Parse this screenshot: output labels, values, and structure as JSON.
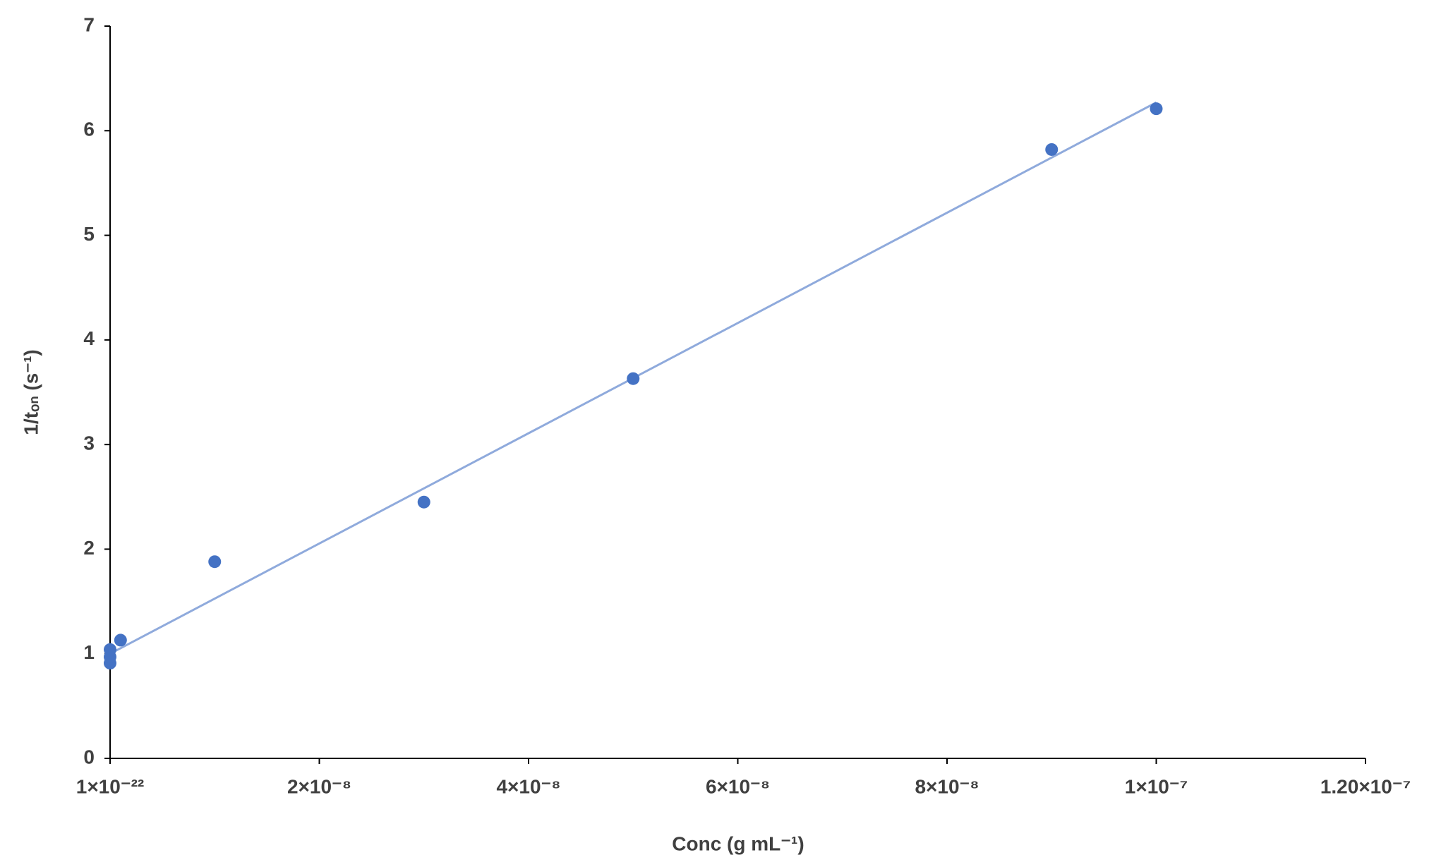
{
  "chart_data": {
    "type": "scatter",
    "x_label": "Conc (g mL⁻¹)",
    "y_label": "1/tₒₙ (s⁻¹)",
    "series": [
      {
        "color": "#4472c4",
        "x": [
          1e-22,
          1e-22,
          1e-22,
          1e-09,
          1e-08,
          3e-08,
          5e-08,
          9e-08,
          1e-07
        ],
        "values": [
          0.91,
          0.97,
          1.04,
          1.13,
          1.88,
          2.45,
          3.63,
          5.82,
          6.21
        ]
      }
    ],
    "trendline": {
      "color": "#8faadc",
      "x": [
        0,
        1e-07
      ],
      "values": [
        1.0,
        6.27
      ]
    },
    "xlim": [
      0,
      1.2e-07
    ],
    "xticks": [
      {
        "value": 0,
        "label": "1×10⁻²²"
      },
      {
        "value": 2e-08,
        "label": "2×10⁻⁸"
      },
      {
        "value": 4e-08,
        "label": "4×10⁻⁸"
      },
      {
        "value": 6e-08,
        "label": "6×10⁻⁸"
      },
      {
        "value": 8e-08,
        "label": "8×10⁻⁸"
      },
      {
        "value": 1e-07,
        "label": "1×10⁻⁷"
      },
      {
        "value": 1.2e-07,
        "label": "1.20×10⁻⁷"
      }
    ],
    "ylim": [
      0,
      7
    ],
    "yticks": [
      0,
      1,
      2,
      3,
      4,
      5,
      6,
      7
    ],
    "grid": false
  }
}
